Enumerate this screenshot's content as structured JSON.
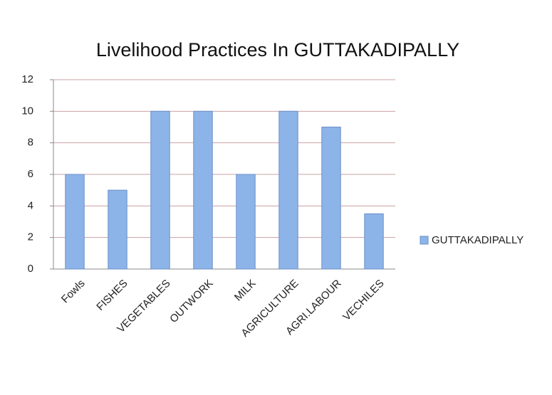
{
  "chart_data": {
    "type": "bar",
    "title": "Livelihood Practices In GUTTAKADIPALLY",
    "categories": [
      "Fowls",
      "FISHES",
      "VEGETABLES",
      "OUTWORK",
      "MILK",
      "AGRICULTURE",
      "AGRI.LABOUR",
      "VECHILES"
    ],
    "series": [
      {
        "name": "GUTTAKADIPALLY",
        "color": "#8db4e8",
        "values": [
          6,
          5,
          10,
          10,
          6,
          10,
          9,
          3.5
        ]
      }
    ],
    "ylim": [
      0,
      12
    ],
    "yticks": [
      0,
      2,
      4,
      6,
      8,
      10,
      12
    ],
    "grid": true,
    "legend": "right"
  }
}
